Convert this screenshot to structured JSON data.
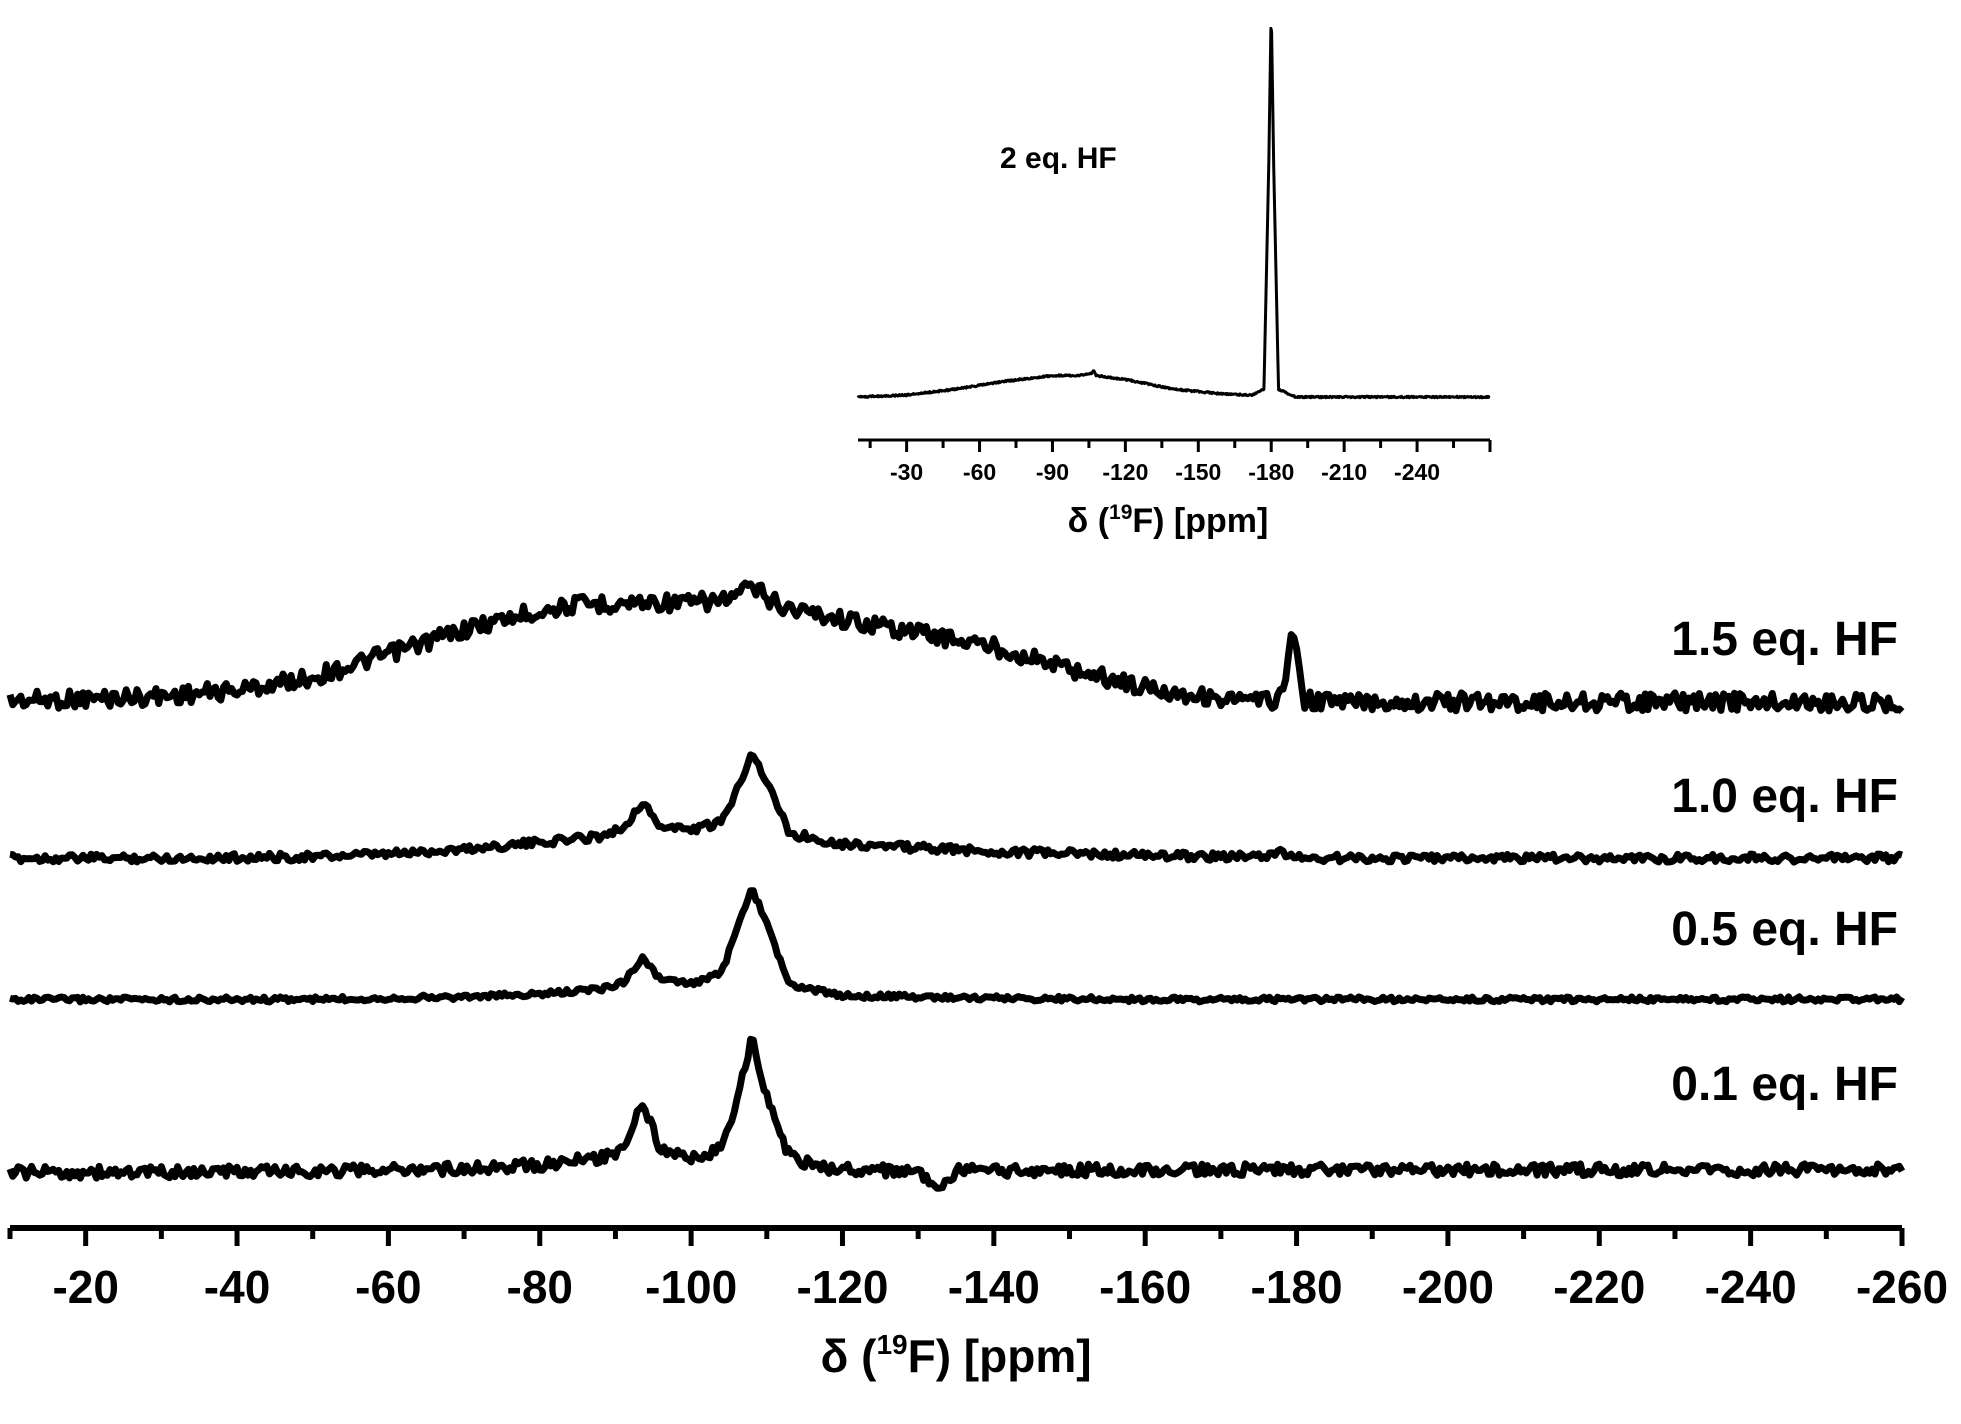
{
  "chart_data": [
    {
      "type": "line",
      "subtype": "stacked-nmr-spectra",
      "xlabel": "δ (19F) [ppm]",
      "xlabel_parts": {
        "pre": "δ (",
        "sup": "19",
        "post": "F) [ppm]"
      },
      "xlim": [
        -10,
        -260
      ],
      "x_reversed": true,
      "x_ticks": [
        -20,
        -40,
        -60,
        -80,
        -100,
        -120,
        -140,
        -160,
        -180,
        -200,
        -220,
        -240,
        -260
      ],
      "x_tick_labels": [
        "-20",
        "-40",
        "-60",
        "-80",
        "-100",
        "-120",
        "-140",
        "-160",
        "-180",
        "-200",
        "-220",
        "-240",
        "-260"
      ],
      "y_axis_shown": false,
      "series": [
        {
          "name": "1.5 eq. HF",
          "x": [
            -10,
            -20,
            -30,
            -40,
            -50,
            -60,
            -70,
            -80,
            -85,
            -90,
            -95,
            -100,
            -105,
            -108,
            -112,
            -120,
            -130,
            -140,
            -150,
            -160,
            -170,
            -175,
            -178,
            -179.5,
            -181,
            -185,
            -200,
            -220,
            -240,
            -260
          ],
          "y": [
            0.08,
            0.09,
            0.11,
            0.15,
            0.24,
            0.4,
            0.57,
            0.7,
            0.74,
            0.75,
            0.76,
            0.75,
            0.78,
            0.86,
            0.73,
            0.64,
            0.55,
            0.45,
            0.3,
            0.17,
            0.09,
            0.07,
            0.1,
            0.56,
            0.08,
            0.07,
            0.07,
            0.07,
            0.07,
            0.06
          ]
        },
        {
          "name": "1.0 eq. HF",
          "x": [
            -10,
            -30,
            -50,
            -60,
            -70,
            -80,
            -88,
            -91,
            -93.5,
            -96,
            -100,
            -104,
            -106,
            -108,
            -110,
            -113,
            -120,
            -140,
            -160,
            -175,
            -178,
            -181,
            -200,
            -220,
            -240,
            -260
          ],
          "y": [
            0.03,
            0.03,
            0.04,
            0.06,
            0.1,
            0.15,
            0.2,
            0.26,
            0.46,
            0.27,
            0.25,
            0.3,
            0.55,
            0.85,
            0.62,
            0.22,
            0.14,
            0.08,
            0.05,
            0.04,
            0.07,
            0.03,
            0.03,
            0.03,
            0.03,
            0.03
          ]
        },
        {
          "name": "0.5 eq. HF",
          "x": [
            -10,
            -30,
            -50,
            -70,
            -80,
            -88,
            -91,
            -93.5,
            -96,
            -100,
            -104,
            -106,
            -108,
            -110,
            -113,
            -120,
            -140,
            -160,
            -180,
            -200,
            -220,
            -240,
            -260
          ],
          "y": [
            0.02,
            0.02,
            0.02,
            0.04,
            0.06,
            0.1,
            0.15,
            0.34,
            0.17,
            0.14,
            0.22,
            0.55,
            0.88,
            0.6,
            0.13,
            0.05,
            0.03,
            0.02,
            0.02,
            0.02,
            0.02,
            0.02,
            0.02
          ]
        },
        {
          "name": "0.1 eq. HF",
          "x": [
            -10,
            -30,
            -50,
            -70,
            -80,
            -88,
            -91,
            -93.5,
            -96,
            -100,
            -104,
            -106,
            -108,
            -110,
            -113,
            -118,
            -130,
            -132.5,
            -135,
            -160,
            -180,
            -200,
            -220,
            -240,
            -260
          ],
          "y": [
            0.02,
            0.02,
            0.03,
            0.05,
            0.08,
            0.13,
            0.2,
            0.58,
            0.18,
            0.13,
            0.2,
            0.55,
            1.05,
            0.6,
            0.14,
            0.05,
            0.03,
            -0.14,
            0.03,
            0.04,
            0.04,
            0.04,
            0.04,
            0.04,
            0.04
          ]
        }
      ]
    },
    {
      "type": "line",
      "subtype": "inset-nmr-spectrum",
      "xlabel": "δ (19F) [ppm]",
      "xlabel_parts": {
        "pre": "δ (",
        "sup": "19",
        "post": "F) [ppm]"
      },
      "xlim": [
        -10,
        -270
      ],
      "x_reversed": true,
      "x_ticks": [
        -30,
        -60,
        -90,
        -120,
        -150,
        -180,
        -210,
        -240
      ],
      "x_tick_labels": [
        "-30",
        "-60",
        "-90",
        "-120",
        "-150",
        "-180",
        "-210",
        "-240"
      ],
      "y_axis_shown": false,
      "series": [
        {
          "name": "2 eq. HF",
          "x": [
            -10,
            -30,
            -50,
            -70,
            -90,
            -100,
            -106,
            -107,
            -108,
            -120,
            -140,
            -160,
            -172,
            -177,
            -179,
            -180,
            -181,
            -183,
            -190,
            -210,
            -240,
            -270
          ],
          "y": [
            0.0,
            0.005,
            0.02,
            0.04,
            0.055,
            0.055,
            0.06,
            0.07,
            0.055,
            0.045,
            0.02,
            0.008,
            0.005,
            0.02,
            0.6,
            1.0,
            0.6,
            0.02,
            0.0,
            0.0,
            0.0,
            0.0
          ]
        }
      ]
    }
  ]
}
